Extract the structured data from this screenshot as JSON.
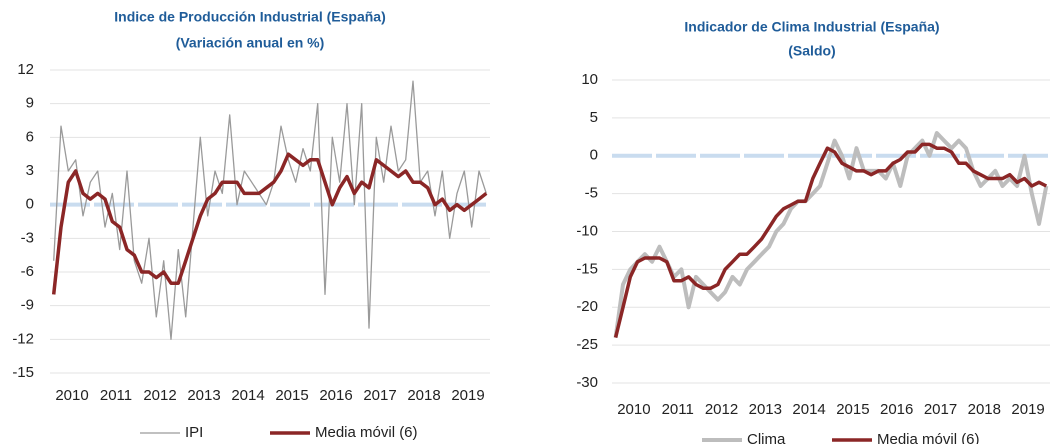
{
  "chart_data": [
    {
      "type": "line",
      "title": "Indice de Producción  Industrial (España)",
      "subtitle": "(Variación anual en %)",
      "categories": [
        null,
        null,
        "2010",
        null,
        null,
        null,
        null,
        null,
        "2011",
        null,
        null,
        null,
        null,
        null,
        "2012",
        null,
        null,
        null,
        null,
        null,
        "2013",
        null,
        null,
        null,
        null,
        null,
        "2014",
        null,
        null,
        null,
        null,
        null,
        "2015",
        null,
        null,
        null,
        null,
        null,
        "2016",
        null,
        null,
        null,
        null,
        null,
        "2017",
        null,
        null,
        null,
        null,
        null,
        "2018",
        null,
        null,
        null,
        null,
        null,
        "2019",
        null,
        null,
        null
      ],
      "ylim": [
        -15,
        12
      ],
      "yticks": [
        -15,
        -12,
        -9,
        -6,
        -3,
        0,
        3,
        6,
        9,
        12
      ],
      "grid": true,
      "series": [
        {
          "name": "IPI",
          "color": "#9a9a9a",
          "width": 1.3,
          "values": [
            -5,
            7,
            3,
            4,
            -1,
            2,
            3,
            -2,
            1,
            -4,
            3,
            -5,
            -7,
            -3,
            -10,
            -5,
            -12,
            -4,
            -10,
            -2,
            6,
            -1,
            3,
            1,
            8,
            0,
            3,
            2,
            1,
            0,
            2,
            7,
            4,
            2,
            5,
            3,
            9,
            -8,
            6,
            2,
            9,
            0,
            9,
            -11,
            6,
            2,
            7,
            3,
            4,
            11,
            2,
            3,
            -1,
            3,
            -3,
            1,
            3,
            -2,
            3,
            1
          ]
        },
        {
          "name": "Media móvil (6)",
          "color": "#8b2626",
          "width": 3.5,
          "values": [
            -8,
            -2,
            2,
            3,
            1,
            0.5,
            1,
            0.5,
            -1.5,
            -2,
            -4,
            -4.5,
            -6,
            -6,
            -6.5,
            -6,
            -7,
            -7,
            -5,
            -3,
            -1,
            0.5,
            1,
            2,
            2,
            2,
            1,
            1,
            1,
            1.5,
            2,
            3,
            4.5,
            4,
            3.5,
            4,
            4,
            2,
            0,
            1.5,
            2.5,
            1,
            2,
            1.5,
            4,
            3.5,
            3,
            2.5,
            3,
            2,
            2,
            1.5,
            0,
            0.5,
            -0.5,
            0,
            -0.5,
            0,
            0.5,
            1
          ]
        }
      ]
    },
    {
      "type": "line",
      "title": "Indicador  de Clima Industrial (España)",
      "subtitle": "(Saldo)",
      "categories": [
        null,
        null,
        "2010",
        null,
        null,
        null,
        null,
        null,
        "2011",
        null,
        null,
        null,
        null,
        null,
        "2012",
        null,
        null,
        null,
        null,
        null,
        "2013",
        null,
        null,
        null,
        null,
        null,
        "2014",
        null,
        null,
        null,
        null,
        null,
        "2015",
        null,
        null,
        null,
        null,
        null,
        "2016",
        null,
        null,
        null,
        null,
        null,
        "2017",
        null,
        null,
        null,
        null,
        null,
        "2018",
        null,
        null,
        null,
        null,
        null,
        "2019",
        null,
        null,
        null
      ],
      "ylim": [
        -30,
        10
      ],
      "yticks": [
        -30,
        -25,
        -20,
        -15,
        -10,
        -5,
        0,
        5,
        10
      ],
      "grid": true,
      "series": [
        {
          "name": "Clima",
          "color": "#bdbdbd",
          "width": 4,
          "values": [
            -24,
            -17,
            -15,
            -14,
            -13,
            -14,
            -12,
            -14,
            -16,
            -15,
            -20,
            -16,
            -17,
            -18,
            -19,
            -18,
            -16,
            -17,
            -15,
            -14,
            -13,
            -12,
            -10,
            -9,
            -7,
            -6,
            -6,
            -5,
            -4,
            -1,
            2,
            0,
            -3,
            1,
            -2,
            -2,
            -2,
            -3,
            -1,
            -4,
            0,
            1,
            2,
            0,
            3,
            2,
            1,
            2,
            1,
            -2,
            -4,
            -3,
            -2,
            -4,
            -3,
            -4,
            0,
            -5,
            -9,
            -4
          ]
        },
        {
          "name": "Media móvil (6)",
          "color": "#8b2626",
          "width": 3.5,
          "values": [
            -24,
            -20,
            -16,
            -14,
            -13.5,
            -13.5,
            -13.5,
            -14,
            -16.5,
            -16.5,
            -16,
            -17,
            -17.5,
            -17.5,
            -17,
            -15,
            -14,
            -13,
            -13,
            -12,
            -11,
            -9.5,
            -8,
            -7,
            -6.5,
            -6,
            -6,
            -3,
            -1,
            1,
            0.5,
            -1,
            -1.5,
            -2,
            -2,
            -2.5,
            -2,
            -2,
            -1,
            -0.5,
            0.5,
            0.5,
            1.5,
            1.5,
            1,
            1,
            0.5,
            -1,
            -1,
            -2,
            -2.5,
            -3,
            -3,
            -3,
            -2.5,
            -3.5,
            -3,
            -4,
            -3.5,
            -4
          ]
        }
      ]
    }
  ]
}
